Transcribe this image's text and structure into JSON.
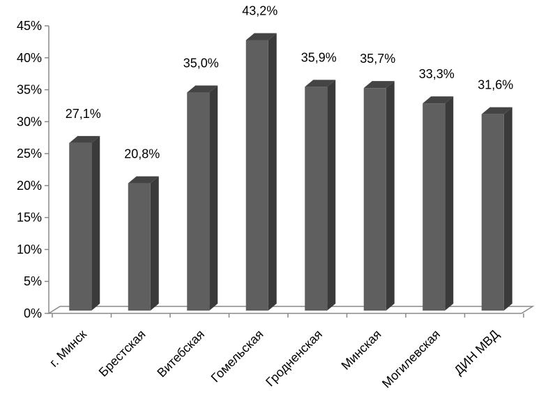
{
  "chart_data": {
    "type": "bar",
    "style": "3d-column",
    "categories": [
      "г. Минск",
      "Брестская",
      "Витебская",
      "Гомельская",
      "Гродненская",
      "Минская",
      "Могилевская",
      "ДИН МВД"
    ],
    "values": [
      27.1,
      20.8,
      35.0,
      43.2,
      35.9,
      35.7,
      33.3,
      31.6
    ],
    "data_labels": [
      "27,1%",
      "20,8%",
      "35,0%",
      "43,2%",
      "35,9%",
      "35,7%",
      "33,3%",
      "31,6%"
    ],
    "y_ticks": [
      0,
      5,
      10,
      15,
      20,
      25,
      30,
      35,
      40,
      45
    ],
    "y_tick_labels": [
      "0%",
      "5%",
      "10%",
      "15%",
      "20%",
      "25%",
      "30%",
      "35%",
      "40%",
      "45%"
    ],
    "ylim": [
      0,
      45
    ],
    "title": "",
    "xlabel": "",
    "ylabel": "",
    "grid": false,
    "legend": "none",
    "colors": {
      "bar_front": "#5f5f5f",
      "bar_side": "#3a3a3a",
      "bar_top": "#444444",
      "axis": "#888888",
      "floor": "#ffffff"
    }
  }
}
